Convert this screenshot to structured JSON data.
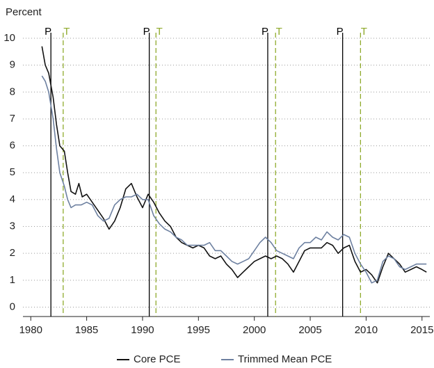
{
  "chart_data": {
    "type": "line",
    "y_label": "Percent",
    "xlim": [
      1979.3,
      2015.7
    ],
    "ylim": [
      -0.35,
      10
    ],
    "xticks": [
      1980,
      1985,
      1990,
      1995,
      2000,
      2005,
      2010,
      2015
    ],
    "yticks": [
      0,
      1,
      2,
      3,
      4,
      5,
      6,
      7,
      8,
      9,
      10
    ],
    "grid": true,
    "legend": "bottom",
    "annotations": {
      "peaks": {
        "label": "P",
        "color": "#000000",
        "x": [
          1981.8,
          1990.6,
          2001.2,
          2007.9
        ]
      },
      "troughs": {
        "label": "T",
        "color": "#8faa2c",
        "x": [
          1982.9,
          1991.2,
          2001.9,
          2009.5
        ]
      }
    },
    "series": [
      {
        "name": "Core PCE",
        "color": "#111111",
        "x": [
          1981.0,
          1981.3,
          1981.6,
          1982.0,
          1982.3,
          1982.6,
          1983.0,
          1983.3,
          1983.6,
          1984.0,
          1984.3,
          1984.6,
          1985.0,
          1985.5,
          1986.0,
          1986.5,
          1987.0,
          1987.5,
          1988.0,
          1988.5,
          1989.0,
          1989.5,
          1990.0,
          1990.5,
          1991.0,
          1991.5,
          1992.0,
          1992.5,
          1993.0,
          1993.5,
          1994.0,
          1994.5,
          1995.0,
          1995.5,
          1996.0,
          1996.5,
          1997.0,
          1997.5,
          1998.0,
          1998.5,
          1999.0,
          1999.5,
          2000.0,
          2000.5,
          2001.0,
          2001.5,
          2002.0,
          2002.5,
          2003.0,
          2003.5,
          2004.0,
          2004.5,
          2005.0,
          2005.5,
          2006.0,
          2006.5,
          2007.0,
          2007.5,
          2008.0,
          2008.5,
          2009.0,
          2009.5,
          2010.0,
          2010.5,
          2011.0,
          2011.5,
          2012.0,
          2012.5,
          2013.0,
          2013.5,
          2014.0,
          2014.5,
          2015.0,
          2015.4
        ],
        "values": [
          9.7,
          9.0,
          8.7,
          7.8,
          6.8,
          6.0,
          5.8,
          5.0,
          4.3,
          4.2,
          4.6,
          4.1,
          4.2,
          3.9,
          3.6,
          3.3,
          2.9,
          3.2,
          3.7,
          4.4,
          4.6,
          4.1,
          3.7,
          4.2,
          3.9,
          3.5,
          3.2,
          3.0,
          2.6,
          2.4,
          2.3,
          2.2,
          2.3,
          2.2,
          1.9,
          1.8,
          1.9,
          1.6,
          1.4,
          1.1,
          1.3,
          1.5,
          1.7,
          1.8,
          1.9,
          1.8,
          1.9,
          1.8,
          1.6,
          1.3,
          1.7,
          2.1,
          2.2,
          2.2,
          2.2,
          2.4,
          2.3,
          2.0,
          2.2,
          2.3,
          1.7,
          1.3,
          1.4,
          1.2,
          0.9,
          1.5,
          2.0,
          1.8,
          1.6,
          1.3,
          1.4,
          1.5,
          1.4,
          1.3
        ]
      },
      {
        "name": "Trimmed Mean PCE",
        "color": "#6d80a0",
        "x": [
          1981.0,
          1981.3,
          1981.6,
          1982.0,
          1982.3,
          1982.6,
          1983.0,
          1983.3,
          1983.6,
          1984.0,
          1984.5,
          1985.0,
          1985.5,
          1986.0,
          1986.5,
          1987.0,
          1987.5,
          1988.0,
          1988.5,
          1989.0,
          1989.5,
          1990.0,
          1990.5,
          1991.0,
          1991.5,
          1992.0,
          1992.5,
          1993.0,
          1993.5,
          1994.0,
          1994.5,
          1995.0,
          1995.5,
          1996.0,
          1996.5,
          1997.0,
          1997.5,
          1998.0,
          1998.5,
          1999.0,
          1999.5,
          2000.0,
          2000.5,
          2001.0,
          2001.5,
          2002.0,
          2002.5,
          2003.0,
          2003.5,
          2004.0,
          2004.5,
          2005.0,
          2005.5,
          2006.0,
          2006.5,
          2007.0,
          2007.5,
          2008.0,
          2008.5,
          2009.0,
          2009.5,
          2010.0,
          2010.5,
          2011.0,
          2011.5,
          2012.0,
          2012.5,
          2013.0,
          2013.5,
          2014.0,
          2014.5,
          2015.0,
          2015.4
        ],
        "values": [
          8.6,
          8.4,
          8.0,
          7.0,
          5.9,
          5.0,
          4.5,
          4.0,
          3.7,
          3.8,
          3.8,
          3.9,
          3.8,
          3.4,
          3.2,
          3.3,
          3.8,
          4.0,
          4.1,
          4.1,
          4.2,
          4.0,
          4.0,
          3.4,
          3.1,
          2.9,
          2.8,
          2.6,
          2.5,
          2.3,
          2.3,
          2.3,
          2.3,
          2.4,
          2.1,
          2.1,
          1.9,
          1.7,
          1.6,
          1.7,
          1.8,
          2.1,
          2.4,
          2.6,
          2.4,
          2.1,
          2.0,
          1.9,
          1.8,
          2.2,
          2.4,
          2.4,
          2.6,
          2.5,
          2.8,
          2.6,
          2.5,
          2.7,
          2.6,
          2.0,
          1.6,
          1.3,
          0.9,
          1.0,
          1.7,
          1.9,
          1.8,
          1.5,
          1.4,
          1.5,
          1.6,
          1.6,
          1.6
        ]
      }
    ]
  }
}
